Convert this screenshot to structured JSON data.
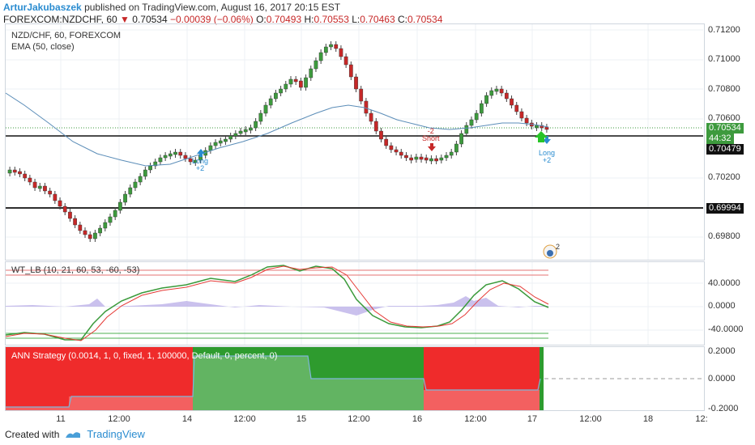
{
  "header": {
    "author": "ArturJakubaszek",
    "published": "published on TradingView.com, August 16, 2017 20:15 EST",
    "symbol": "FOREXCOM:NZDCHF, 60",
    "last": "0.70534",
    "change": "−0.00039 (−0.06%)",
    "open_label": "O:",
    "open": "0.70493",
    "high_label": "H:",
    "high": "0.70553",
    "low_label": "L:",
    "low": "0.70463",
    "close_label": "C:",
    "close": "0.70534"
  },
  "main_panel": {
    "title": "NZD/CHF, 60, FOREXCOM",
    "ema_label": "EMA (50, close)",
    "y_ticks": [
      "0.71200",
      "0.71000",
      "0.70800",
      "0.70600",
      "0.70200",
      "0.69800"
    ],
    "price_tag": "0.70534",
    "countdown": "44:32",
    "level_1": "0.70479",
    "level_2": "0.69994",
    "signals": [
      {
        "text1": "Long",
        "text2": "+2"
      },
      {
        "text1": "-2",
        "text2": "Short"
      },
      {
        "text1": "Long",
        "text2": "+2"
      }
    ],
    "notif_count": "2"
  },
  "wt_panel": {
    "title": "WT_LB (10, 21, 60, 53, -60, -53)",
    "y_ticks": [
      "40.0000",
      "0.0000",
      "-40.0000"
    ]
  },
  "ann_panel": {
    "title": "ANN Strategy (0.0014, 1, 0, fixed, 1, 100000, Default, 0, percent, 0)",
    "y_ticks": [
      "0.2000",
      "0.0000",
      "-0.2000"
    ]
  },
  "time_axis": [
    "11",
    "12:00",
    "14",
    "12:00",
    "15",
    "12:00",
    "16",
    "12:00",
    "17",
    "12:00",
    "18",
    "12:"
  ],
  "footer": {
    "created_with": "Created with",
    "brand": "TradingView"
  },
  "colors": {
    "up": "#3d9a3d",
    "down": "#c62828",
    "ema": "#5b8db8",
    "accent": "#2a8cd0",
    "ann_red": "#ef2b2b",
    "ann_green": "#2e9b2e"
  },
  "chart_data": {
    "type": "candlestick",
    "ylim": [
      0.6968,
      0.7125
    ],
    "ema_period": 50,
    "horizontal_levels": [
      0.70479,
      0.69994
    ],
    "last_price": 0.70534
  }
}
